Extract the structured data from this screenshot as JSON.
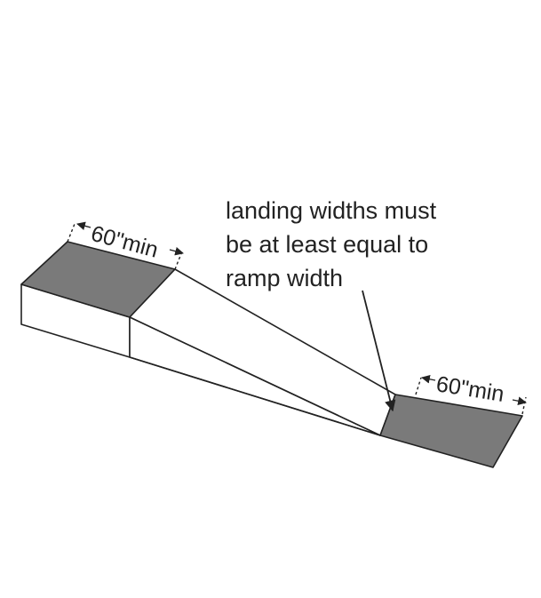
{
  "diagram": {
    "annotation": {
      "line1": "landing widths must",
      "line2": "be at least equal to",
      "line3": "ramp width"
    },
    "upper_landing_dimension": "60\"min",
    "lower_landing_dimension": "60\"min",
    "colors": {
      "landing_fill": "#7a7a7a",
      "ramp_fill": "#ffffff",
      "line": "#222222"
    }
  }
}
